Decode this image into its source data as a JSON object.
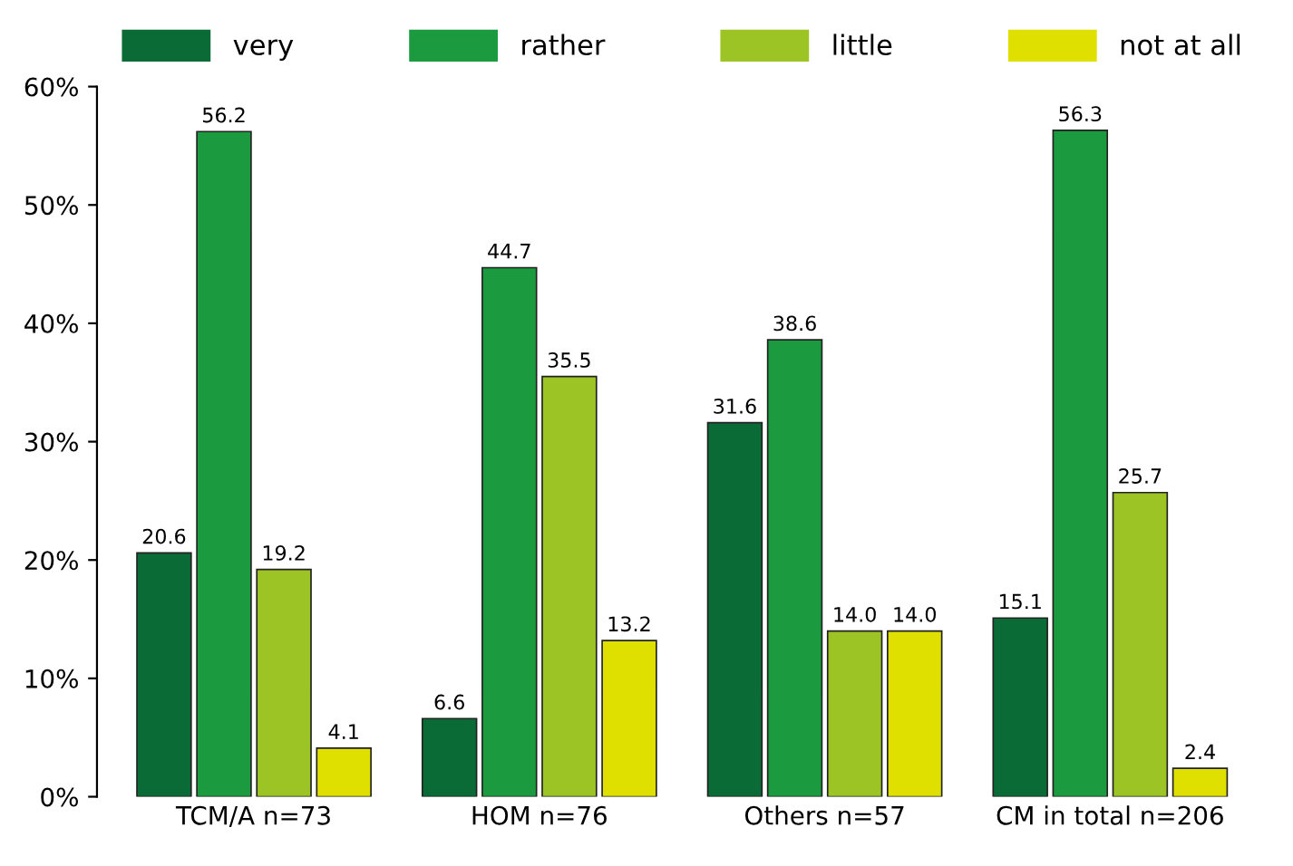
{
  "chart_data": {
    "type": "bar",
    "categories": [
      "TCM/A n=73",
      "HOM n=76",
      "Others n=57",
      "CM in total n=206"
    ],
    "series": [
      {
        "name": "very",
        "color": "#0a6b36",
        "values": [
          20.6,
          6.6,
          31.6,
          15.1
        ],
        "value_labels": [
          "20.6",
          "6.6",
          "31.6",
          "15.1"
        ]
      },
      {
        "name": "rather",
        "color": "#1b9a3f",
        "values": [
          56.2,
          44.7,
          38.6,
          56.3
        ],
        "value_labels": [
          "56.2",
          "44.7",
          "38.6",
          "56.3"
        ]
      },
      {
        "name": "little",
        "color": "#9cc424",
        "values": [
          19.2,
          35.5,
          14.0,
          25.7
        ],
        "value_labels": [
          "19.2",
          "35.5",
          "14.0",
          "25.7"
        ]
      },
      {
        "name": "not at all",
        "color": "#dfe000",
        "values": [
          4.1,
          13.2,
          14.0,
          2.4
        ],
        "value_labels": [
          "4.1",
          "13.2",
          "14.0",
          "2.4"
        ]
      }
    ],
    "ylim": [
      0,
      60
    ],
    "yticks": [
      {
        "value": 0,
        "label": "0%"
      },
      {
        "value": 10,
        "label": "10%"
      },
      {
        "value": 20,
        "label": "20%"
      },
      {
        "value": 30,
        "label": "30%"
      },
      {
        "value": 40,
        "label": "40%"
      },
      {
        "value": 50,
        "label": "50%"
      },
      {
        "value": 60,
        "label": "60%"
      }
    ],
    "grid": false,
    "legend": "top"
  }
}
